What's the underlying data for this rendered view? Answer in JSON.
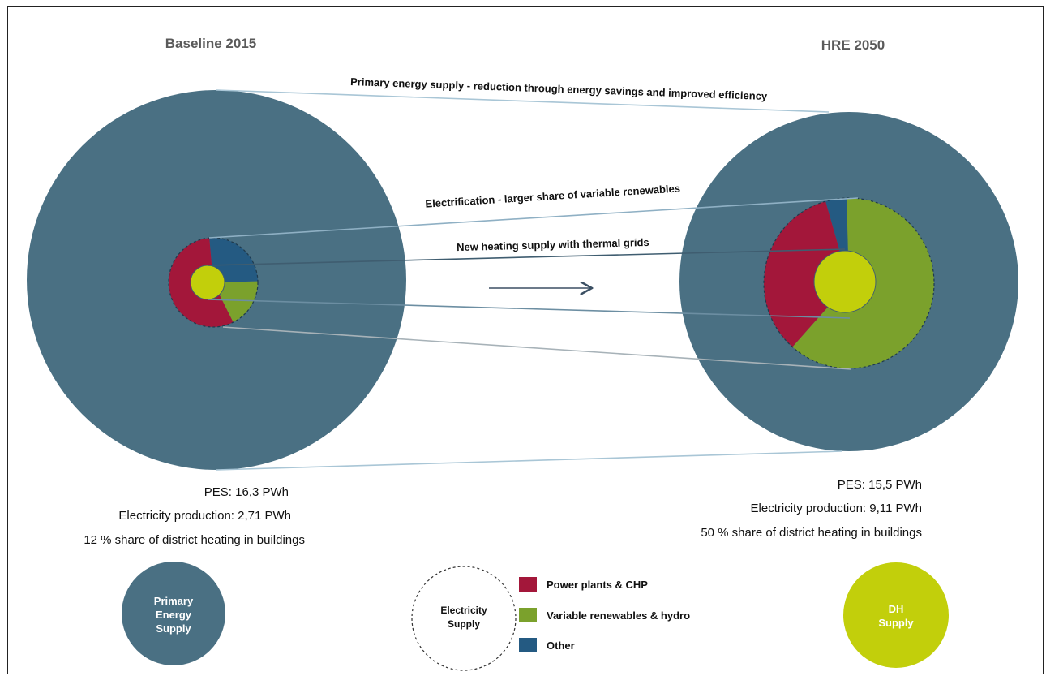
{
  "colors": {
    "primary": "#4a7083",
    "power_plants": "#a3173a",
    "variable_renewables": "#7ba12c",
    "other": "#245a82",
    "dh": "#c2cf0b",
    "link_light": "#a9c6d6",
    "link_dark": "#3f5d70",
    "arrow": "#3b4f63"
  },
  "scenarios": {
    "left": {
      "title": "Baseline 2015",
      "pes": "PES: 16,3 PWh",
      "electricity": "Electricity production: 2,71 PWh",
      "dh_share": "12 % share of district heating in buildings",
      "electricity_mix": {
        "power_plants": 0.56,
        "variable_renewables": 0.18,
        "other": 0.26
      }
    },
    "right": {
      "title": "HRE 2050",
      "pes": "PES: 15,5 PWh",
      "electricity": "Electricity production: 9,11 PWh",
      "dh_share": "50 % share of district heating in buildings",
      "electricity_mix": {
        "power_plants": 0.34,
        "variable_renewables": 0.62,
        "other": 0.04
      }
    }
  },
  "annotations": {
    "primary": "Primary energy supply - reduction through energy savings and improved efficiency",
    "electrification": "Electrification - larger share of variable renewables",
    "heating": "New heating supply with thermal grids"
  },
  "legend": {
    "primary_line1": "Primary",
    "primary_line2": "Energy",
    "primary_line3": "Supply",
    "electricity_line1": "Electricity",
    "electricity_line2": "Supply",
    "items": [
      {
        "label": "Power plants & CHP",
        "color": "#a3173a"
      },
      {
        "label": "Variable renewables & hydro",
        "color": "#7ba12c"
      },
      {
        "label": "Other",
        "color": "#245a82"
      }
    ],
    "dh_line1": "DH",
    "dh_line2": "Supply"
  }
}
